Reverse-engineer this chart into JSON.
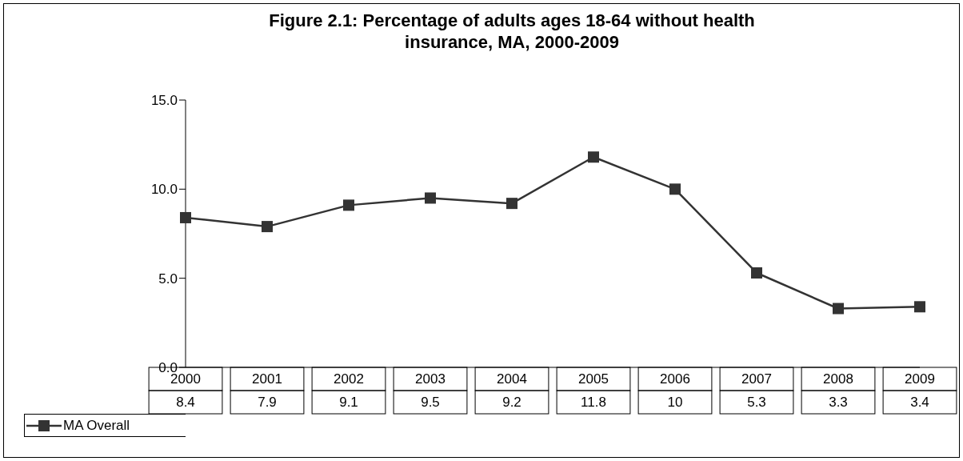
{
  "chart_data": {
    "type": "line",
    "title": "Figure 2.1: Percentage of adults ages 18-64 without health insurance, MA, 2000-2009",
    "categories": [
      "2000",
      "2001",
      "2002",
      "2003",
      "2004",
      "2005",
      "2006",
      "2007",
      "2008",
      "2009"
    ],
    "series": [
      {
        "name": "MA Overall",
        "color": "#333333",
        "values": [
          8.4,
          7.9,
          9.1,
          9.5,
          9.2,
          11.8,
          10,
          5.3,
          3.3,
          3.4
        ]
      }
    ],
    "ylim": [
      0,
      15
    ],
    "yticks": [
      {
        "value": 0,
        "label": "0.0"
      },
      {
        "value": 5,
        "label": "5.0"
      },
      {
        "value": 10,
        "label": "10.0"
      },
      {
        "value": 15,
        "label": "15.0"
      }
    ],
    "grid": false,
    "legend": "bottom left",
    "marker": "square",
    "line_style": "solid",
    "data_labels": true
  }
}
